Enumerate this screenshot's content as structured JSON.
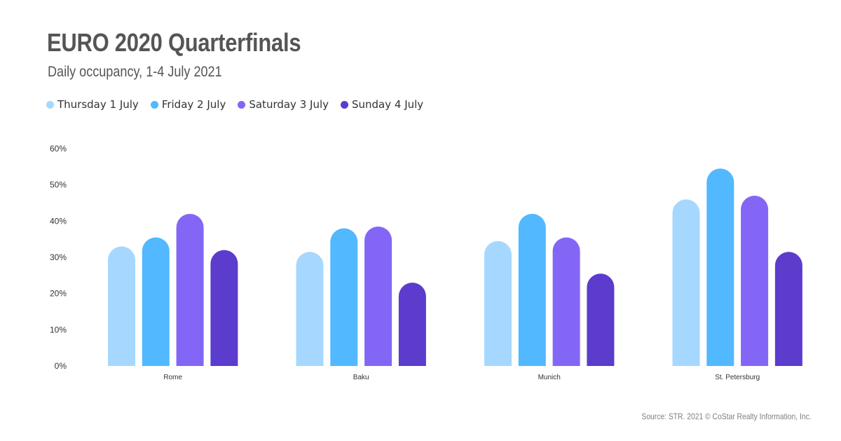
{
  "title": "EURO 2020 Quarterfinals",
  "subtitle": "Daily occupancy, 1-4 July 2021",
  "source": "Source: STR. 2021 © CoStar Realty Information, Inc.",
  "chart_data": {
    "type": "bar",
    "categories": [
      "Rome",
      "Baku",
      "Munich",
      "St. Petersburg"
    ],
    "series": [
      {
        "name": "Thursday 1 July",
        "color": "#a6d8ff",
        "values": [
          33,
          31.5,
          34.5,
          46
        ]
      },
      {
        "name": "Friday 2 July",
        "color": "#52b8ff",
        "values": [
          35.5,
          38,
          42,
          54.5
        ]
      },
      {
        "name": "Saturday 3 July",
        "color": "#8466f6",
        "values": [
          42,
          38.5,
          35.5,
          47
        ]
      },
      {
        "name": "Sunday 4 July",
        "color": "#5b3ccd",
        "values": [
          32,
          23,
          25.5,
          31.5
        ]
      }
    ],
    "ylim": [
      0,
      60
    ],
    "yticks": [
      "0%",
      "10%",
      "20%",
      "30%",
      "40%",
      "50%",
      "60%"
    ],
    "grid": false,
    "legend": "top-left"
  }
}
